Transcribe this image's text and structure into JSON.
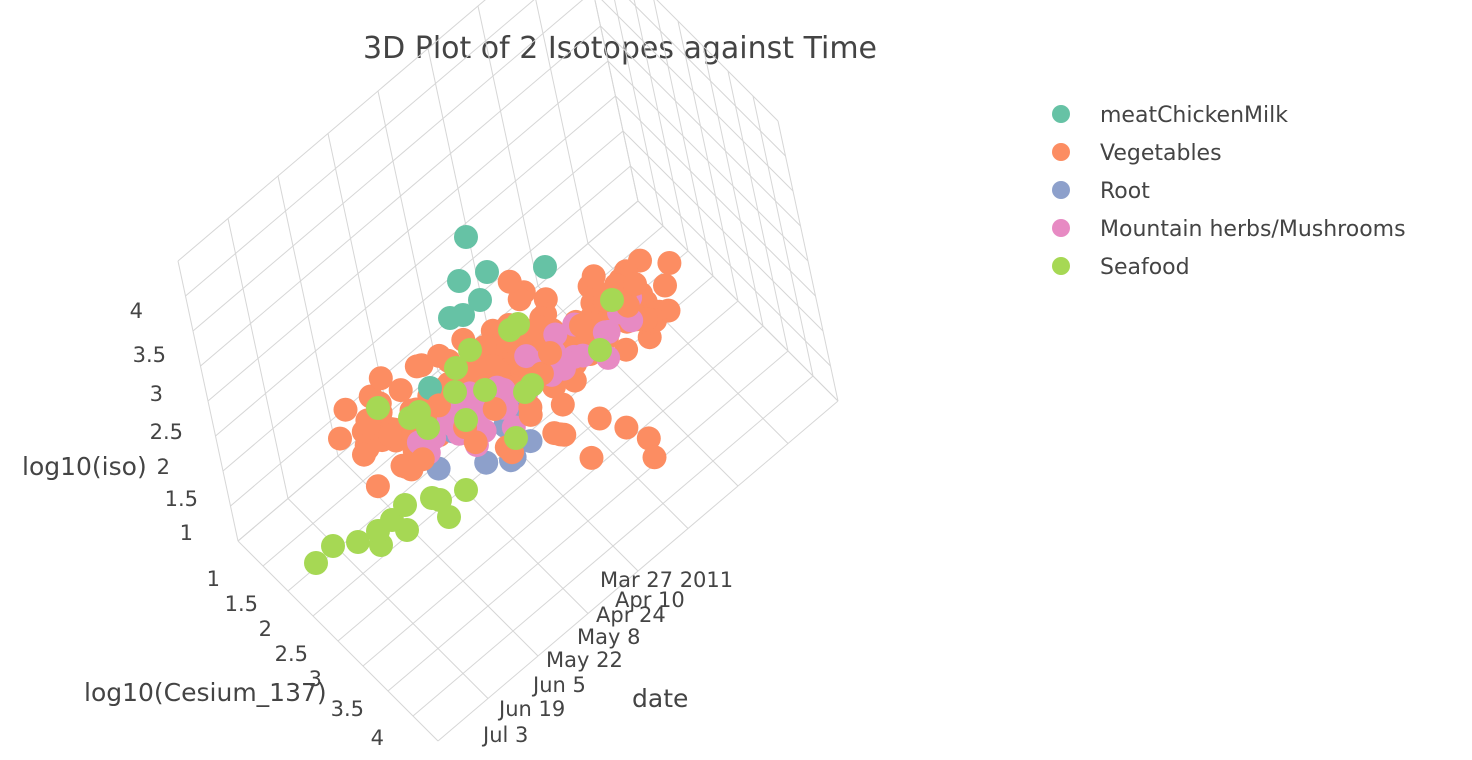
{
  "chart_data": {
    "type": "scatter3d",
    "title": "3D Plot of 2 Isotopes against Time",
    "axes": {
      "x": {
        "title": "date",
        "ticks": [
          "Mar 27 2011",
          "Apr 10",
          "Apr 24",
          "May 8",
          "May 22",
          "Jun 5",
          "Jun 19",
          "Jul 3"
        ]
      },
      "y": {
        "title": "log10(Cesium_137)",
        "ticks": [
          "1",
          "1.5",
          "2",
          "2.5",
          "3",
          "3.5",
          "4"
        ]
      },
      "z": {
        "title": "log10(iso)",
        "ticks": [
          "1",
          "1.5",
          "2",
          "2.5",
          "3",
          "3.5",
          "4"
        ]
      }
    },
    "legend_position": "top-right",
    "series": [
      {
        "name": "meatChickenMilk",
        "color": "#66c2a5"
      },
      {
        "name": "Vegetables",
        "color": "#fc8d62"
      },
      {
        "name": "Root",
        "color": "#8da0cb"
      },
      {
        "name": "Mountain herbs/Mushrooms",
        "color": "#e78ac3"
      },
      {
        "name": "Seafood",
        "color": "#a6d854"
      }
    ]
  }
}
